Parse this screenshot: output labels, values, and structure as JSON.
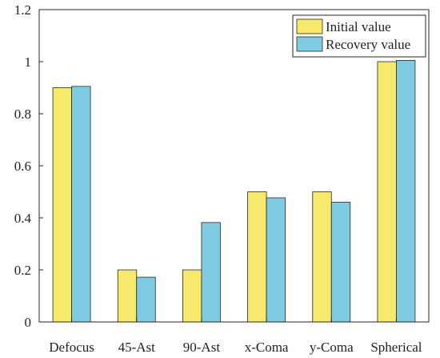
{
  "chart_data": {
    "type": "bar",
    "title": "",
    "xlabel": "",
    "ylabel": "",
    "categories": [
      "Defocus",
      "45-Ast",
      "90-Ast",
      "x-Coma",
      "y-Coma",
      "Spherical"
    ],
    "series": [
      {
        "name": "Initial value",
        "values": [
          0.9,
          0.2,
          0.2,
          0.5,
          0.5,
          1.0
        ],
        "color": "#F7E96B"
      },
      {
        "name": "Recovery value",
        "values": [
          0.905,
          0.172,
          0.382,
          0.477,
          0.46,
          1.005
        ],
        "color": "#7FCBE2"
      }
    ],
    "ylim": [
      0,
      1.2
    ],
    "yticks": [
      0,
      0.2,
      0.4,
      0.6,
      0.8,
      1,
      1.2
    ],
    "ytick_labels": [
      "0",
      "0.2",
      "0.4",
      "0.6",
      "0.8",
      "1",
      "1.2"
    ],
    "grid": false,
    "legend_position": "top-right"
  }
}
